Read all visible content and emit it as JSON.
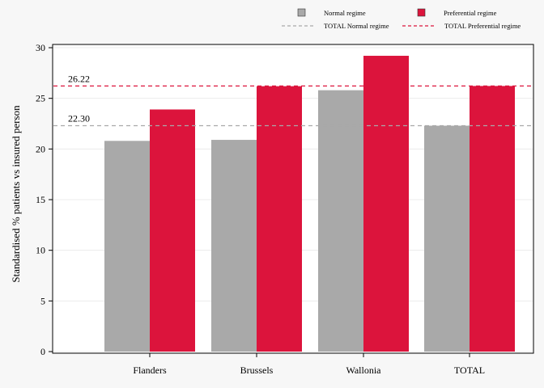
{
  "chart_data": {
    "type": "bar",
    "categories": [
      "Flanders",
      "Brussels",
      "Wallonia",
      "TOTAL"
    ],
    "series": [
      {
        "name": "Normal regime",
        "color": "#a9a9a9",
        "values": [
          20.8,
          20.9,
          25.8,
          22.3
        ]
      },
      {
        "name": "Preferential regime",
        "color": "#dc143c",
        "values": [
          23.9,
          26.2,
          29.2,
          26.22
        ]
      }
    ],
    "reference_lines": [
      {
        "name": "TOTAL Normal regime",
        "value": 22.3,
        "label": "22.30",
        "color": "#a9a9a9"
      },
      {
        "name": "TOTAL Preferential regime",
        "value": 26.22,
        "label": "26.22",
        "color": "#dc143c"
      }
    ],
    "title": "",
    "xlabel": "",
    "ylabel": "Standardised % patients vs insured person",
    "ylim": [
      0,
      30
    ],
    "yticks": [
      0,
      5,
      10,
      15,
      20,
      25,
      30
    ],
    "grid": true,
    "legend_position": "top-right"
  }
}
